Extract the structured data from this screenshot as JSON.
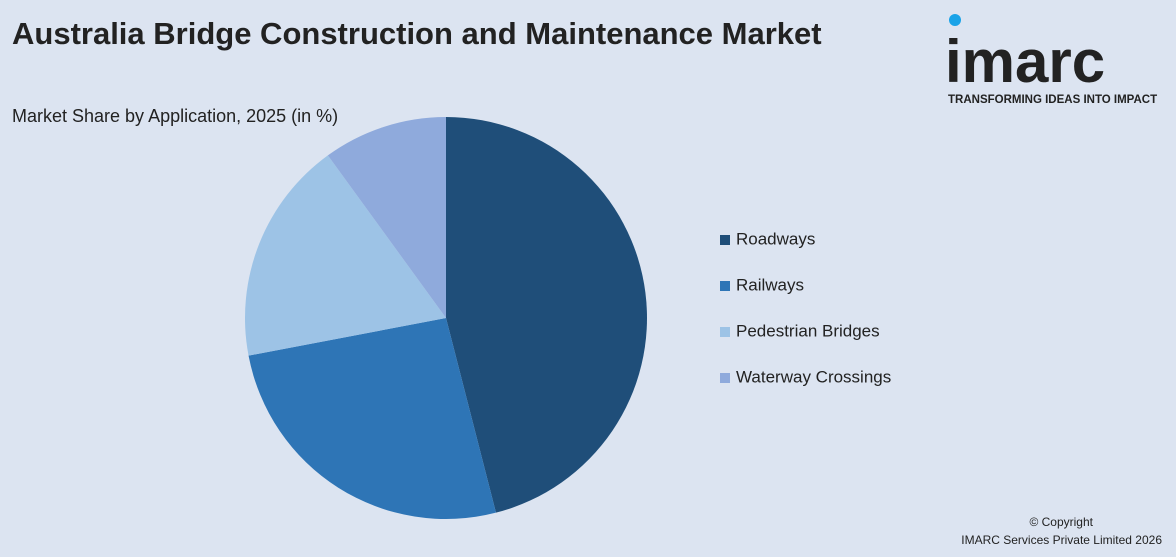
{
  "chart_data": {
    "type": "pie",
    "title": "Australia Bridge Construction and Maintenance Market",
    "subtitle": "Market Share by Application, 2025 (in %)",
    "categories": [
      "Roadways",
      "Railways",
      "Pedestrian Bridges",
      "Waterway Crossings"
    ],
    "values": [
      46,
      26,
      18,
      10
    ],
    "colors": [
      "#1f4e79",
      "#2e75b6",
      "#9dc3e6",
      "#8faadc"
    ],
    "legend": "right"
  },
  "logo": {
    "name": "imarc",
    "tagline": "TRANSFORMING IDEAS INTO IMPACT"
  },
  "footer": {
    "copyright": "© Copyright",
    "company": "IMARC Services Private Limited 2026"
  }
}
